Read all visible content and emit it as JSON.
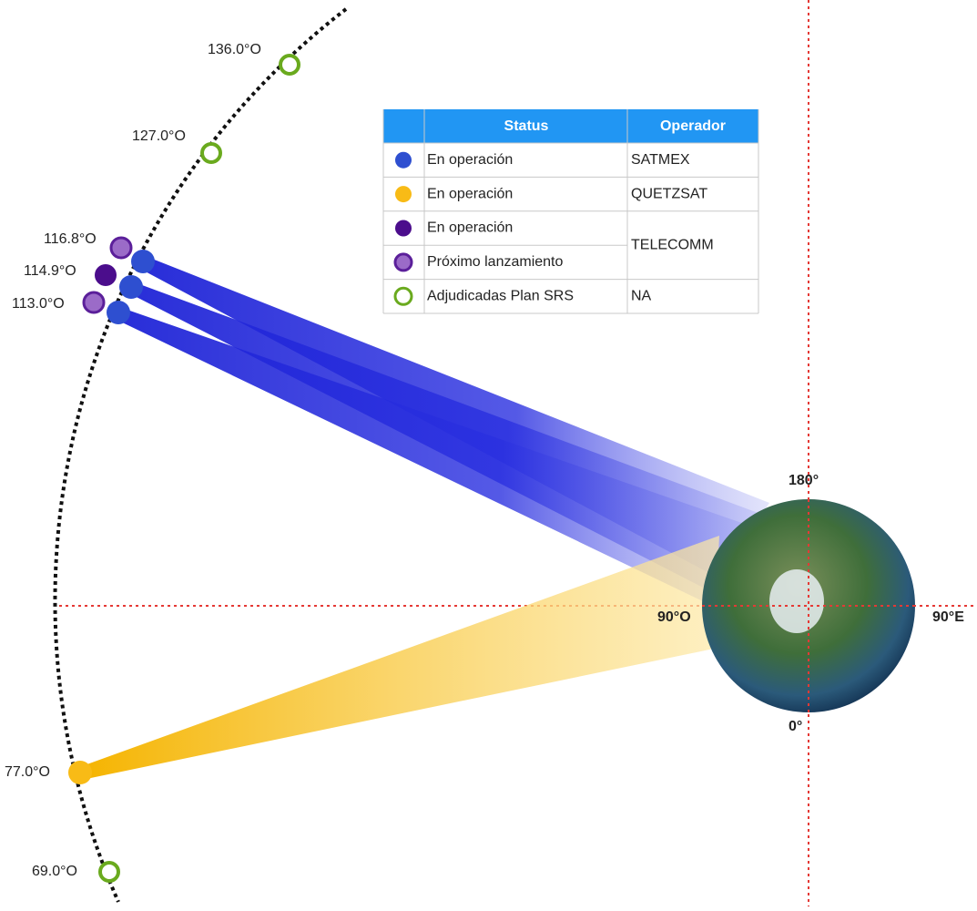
{
  "slots": [
    {
      "label": "136.0°O"
    },
    {
      "label": "127.0°O"
    },
    {
      "label": "116.8°O"
    },
    {
      "label": "114.9°O"
    },
    {
      "label": "113.0°O"
    },
    {
      "label": "77.0°O"
    },
    {
      "label": "69.0°O"
    }
  ],
  "legend": {
    "header": [
      "Status",
      "Operador"
    ],
    "rows": [
      {
        "status": "En operación",
        "operator": "SATMEX"
      },
      {
        "status": "En operación",
        "operator": "QUETZSAT"
      },
      {
        "status": "En operación",
        "operator": "TELECOMM"
      },
      {
        "status": "Próximo lanzamiento"
      },
      {
        "status": "Adjudicadas Plan SRS",
        "operator": "NA"
      }
    ]
  },
  "axes": {
    "top": "180°",
    "left": "90°O",
    "right": "90°E",
    "bottom": "0°"
  }
}
